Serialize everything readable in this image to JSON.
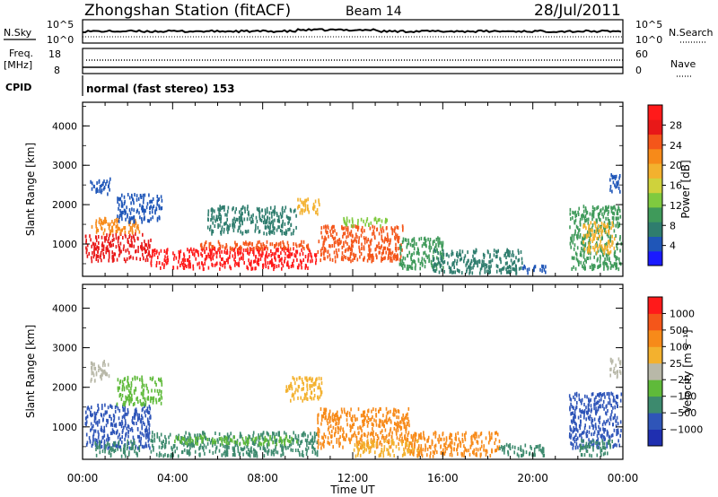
{
  "header": {
    "station": "Zhongshan Station (fitACF)",
    "beam": "Beam 14",
    "date": "28/Jul/2011"
  },
  "top_panels": {
    "nsky_label": "N.Sky",
    "nsearch_label": "N.Search",
    "nsky_ticks": [
      "10^5",
      "10^0"
    ],
    "nsearch_ticks": [
      "10^5",
      "10^0"
    ],
    "freq_label": "Freq.",
    "freq_unit": "[MHz]",
    "freq_ticks": [
      "18",
      "8"
    ],
    "nave_label": "Nave",
    "nave_ticks": [
      "60",
      "0"
    ],
    "cpid_label": "CPID",
    "cpid_text": "normal (fast stereo) 153"
  },
  "x_axis": {
    "label": "Time UT",
    "ticks": [
      "00:00",
      "04:00",
      "08:00",
      "12:00",
      "16:00",
      "20:00",
      "00:00"
    ]
  },
  "chart_data": [
    {
      "type": "heatmap",
      "name": "power",
      "ylabel": "Slant Range [km]",
      "ylim": [
        180,
        4600
      ],
      "yticks": [
        "4000",
        "3000",
        "2000",
        "1000"
      ],
      "xlim_hours": [
        0,
        24
      ],
      "colorbar": {
        "label": "Power [dB]",
        "ticks": [
          "28",
          "24",
          "20",
          "16",
          "12",
          "8",
          "4"
        ],
        "colors": [
          "#1a1aff",
          "#1f56b8",
          "#2f7d6e",
          "#3f9a5a",
          "#7fca3f",
          "#cfd23c",
          "#f3b12e",
          "#f78a19",
          "#f4561a",
          "#e81818",
          "#ff1a1a"
        ]
      },
      "blobs": [
        {
          "t0": 0.1,
          "t1": 3.0,
          "r0": 600,
          "r1": 1300,
          "color": "#e81818"
        },
        {
          "t0": 0.3,
          "t1": 2.5,
          "r0": 1300,
          "r1": 1700,
          "color": "#f78a19"
        },
        {
          "t0": 3.0,
          "t1": 10.4,
          "r0": 400,
          "r1": 950,
          "color": "#ff1a1a"
        },
        {
          "t0": 5.0,
          "t1": 10.0,
          "r0": 900,
          "r1": 1100,
          "color": "#f4561a"
        },
        {
          "t0": 10.4,
          "t1": 14.2,
          "r0": 600,
          "r1": 1500,
          "color": "#f4561a"
        },
        {
          "t0": 11.5,
          "t1": 13.5,
          "r0": 1500,
          "r1": 1700,
          "color": "#7fca3f"
        },
        {
          "t0": 14.0,
          "t1": 16.0,
          "r0": 400,
          "r1": 1200,
          "color": "#3f9a5a"
        },
        {
          "t0": 15.5,
          "t1": 19.5,
          "r0": 300,
          "r1": 900,
          "color": "#2f7d6e"
        },
        {
          "t0": 19.5,
          "t1": 20.6,
          "r0": 300,
          "r1": 500,
          "color": "#1f56b8"
        },
        {
          "t0": 21.6,
          "t1": 23.9,
          "r0": 400,
          "r1": 2000,
          "color": "#3f9a5a"
        },
        {
          "t0": 22.2,
          "t1": 23.6,
          "r0": 800,
          "r1": 1600,
          "color": "#f3b12e"
        },
        {
          "t0": 0.3,
          "t1": 1.2,
          "r0": 2300,
          "r1": 2700,
          "color": "#1f56b8"
        },
        {
          "t0": 1.5,
          "t1": 3.5,
          "r0": 1600,
          "r1": 2300,
          "color": "#1f56b8"
        },
        {
          "t0": 5.5,
          "t1": 9.5,
          "r0": 1300,
          "r1": 2000,
          "color": "#2f7d6e"
        },
        {
          "t0": 9.5,
          "t1": 10.5,
          "r0": 1800,
          "r1": 2200,
          "color": "#f3b12e"
        },
        {
          "t0": 23.4,
          "t1": 23.9,
          "r0": 2300,
          "r1": 2800,
          "color": "#1f56b8"
        }
      ]
    },
    {
      "type": "heatmap",
      "name": "velocity",
      "ylabel": "Slant Range [km]",
      "ylim": [
        180,
        4600
      ],
      "yticks": [
        "4000",
        "3000",
        "2000",
        "1000"
      ],
      "xlim_hours": [
        0,
        24
      ],
      "colorbar": {
        "label": "Velocity [m s⁻¹]",
        "ticks": [
          "1000",
          "500",
          "100",
          "25",
          "−25",
          "−100",
          "−500",
          "−1000"
        ],
        "colors": [
          "#1f2fb0",
          "#2f55b8",
          "#3d8a6e",
          "#5fba3a",
          "#b8b8a8",
          "#f3b12e",
          "#f78a19",
          "#f4561a",
          "#ff1a1a"
        ]
      },
      "blobs": [
        {
          "t0": 0.1,
          "t1": 3.0,
          "r0": 500,
          "r1": 1600,
          "color": "#2f55b8"
        },
        {
          "t0": 0.5,
          "t1": 2.5,
          "r0": 300,
          "r1": 700,
          "color": "#3d8a6e"
        },
        {
          "t0": 3.0,
          "t1": 10.4,
          "r0": 300,
          "r1": 900,
          "color": "#3d8a6e"
        },
        {
          "t0": 4.0,
          "t1": 9.5,
          "r0": 600,
          "r1": 800,
          "color": "#5fba3a"
        },
        {
          "t0": 10.4,
          "t1": 14.5,
          "r0": 500,
          "r1": 1500,
          "color": "#f78a19"
        },
        {
          "t0": 12.0,
          "t1": 15.0,
          "r0": 300,
          "r1": 700,
          "color": "#f3b12e"
        },
        {
          "t0": 14.5,
          "t1": 18.5,
          "r0": 300,
          "r1": 900,
          "color": "#f78a19"
        },
        {
          "t0": 18.5,
          "t1": 20.5,
          "r0": 300,
          "r1": 600,
          "color": "#3d8a6e"
        },
        {
          "t0": 21.6,
          "t1": 23.9,
          "r0": 500,
          "r1": 1900,
          "color": "#2f55b8"
        },
        {
          "t0": 22.0,
          "t1": 23.5,
          "r0": 300,
          "r1": 700,
          "color": "#3d8a6e"
        },
        {
          "t0": 0.3,
          "t1": 1.2,
          "r0": 2200,
          "r1": 2700,
          "color": "#b8b8a8"
        },
        {
          "t0": 1.5,
          "t1": 3.5,
          "r0": 1600,
          "r1": 2300,
          "color": "#5fba3a"
        },
        {
          "t0": 9.0,
          "t1": 10.6,
          "r0": 1700,
          "r1": 2300,
          "color": "#f3b12e"
        },
        {
          "t0": 23.4,
          "t1": 23.9,
          "r0": 2300,
          "r1": 2800,
          "color": "#b8b8a8"
        }
      ]
    }
  ]
}
